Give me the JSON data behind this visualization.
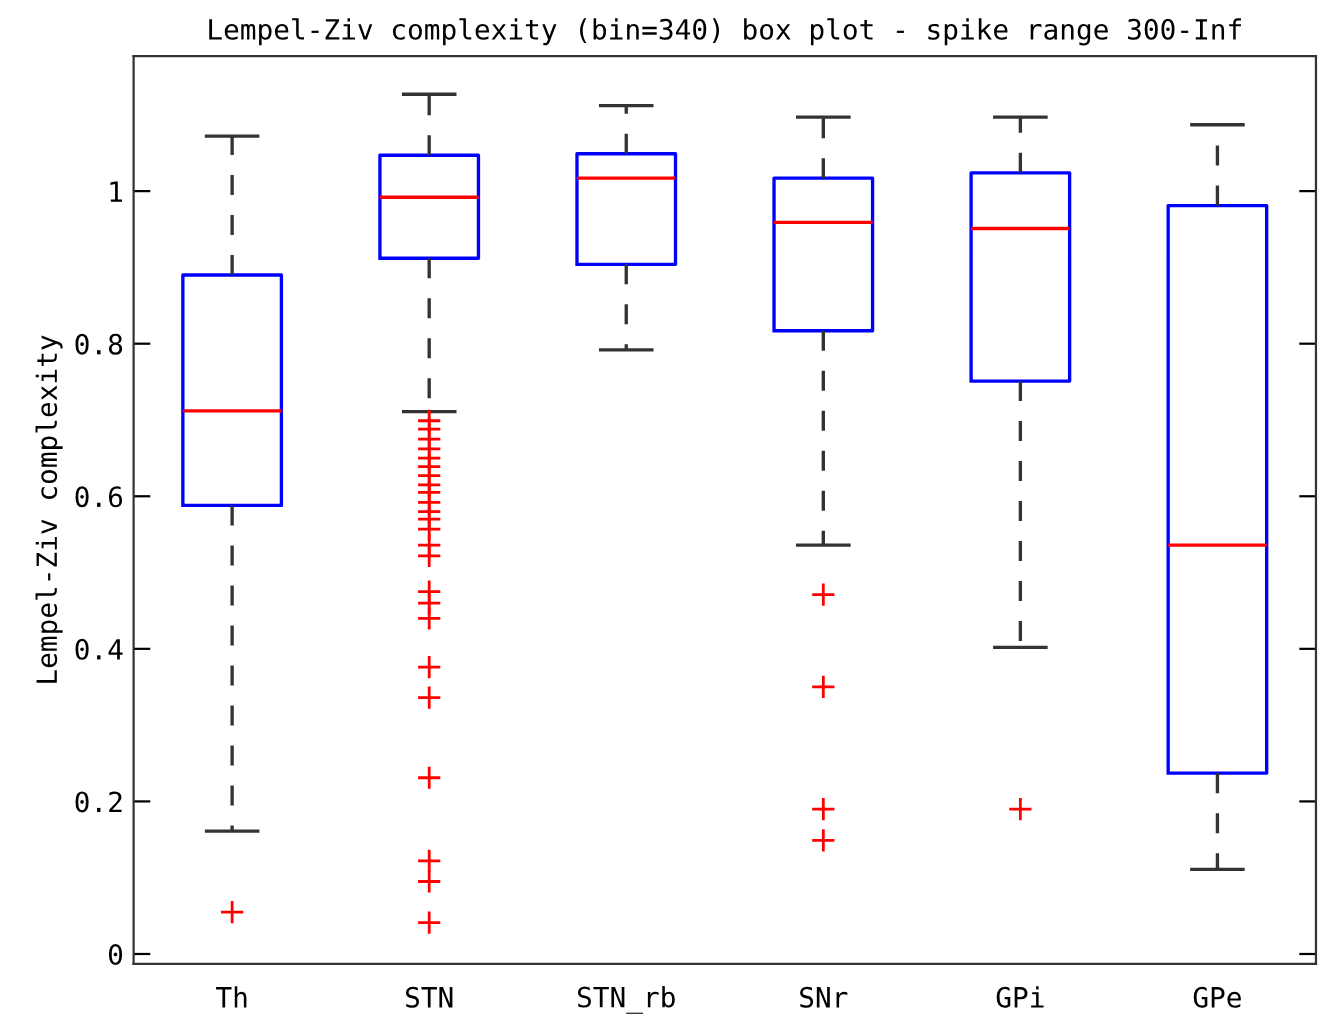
{
  "chart_data": {
    "type": "box",
    "title": "Lempel-Ziv complexity (bin=340) box plot - spike range 300-Inf",
    "ylabel": "Lempel-Ziv complexity",
    "categories": [
      "Th",
      "STN",
      "STN_rb",
      "SNr",
      "GPi",
      "GPe"
    ],
    "series": [
      {
        "color": "#0000ff",
        "boxes": [
          {
            "low": 0.161,
            "q1": 0.588,
            "median": 0.712,
            "q3": 0.89,
            "high": 1.072,
            "outliers": [
              0.055
            ]
          },
          {
            "low": 0.711,
            "q1": 0.912,
            "median": 0.992,
            "q3": 1.047,
            "high": 1.127,
            "outliers": [
              0.699,
              0.688,
              0.675,
              0.662,
              0.65,
              0.639,
              0.627,
              0.615,
              0.605,
              0.592,
              0.58,
              0.57,
              0.557,
              0.536,
              0.522,
              0.475,
              0.46,
              0.44,
              0.376,
              0.336,
              0.231,
              0.122,
              0.095,
              0.041
            ]
          },
          {
            "low": 0.792,
            "q1": 0.904,
            "median": 1.017,
            "q3": 1.049,
            "high": 1.112
          },
          {
            "low": 0.536,
            "q1": 0.817,
            "median": 0.959,
            "q3": 1.017,
            "high": 1.097,
            "outliers": [
              0.471,
              0.35,
              0.19,
              0.149
            ]
          },
          {
            "low": 0.402,
            "q1": 0.751,
            "median": 0.951,
            "q3": 1.024,
            "high": 1.097,
            "outliers": [
              0.19
            ]
          },
          {
            "low": 0.111,
            "q1": 0.237,
            "median": 0.536,
            "q3": 0.981,
            "high": 1.087
          }
        ]
      }
    ],
    "ylim": [
      -0.013,
      1.177
    ],
    "yticks": [
      0,
      0.2,
      0.4,
      0.6,
      0.8,
      1
    ],
    "marker": "cross",
    "line_style": "dashed",
    "grid": false,
    "legend": false
  }
}
